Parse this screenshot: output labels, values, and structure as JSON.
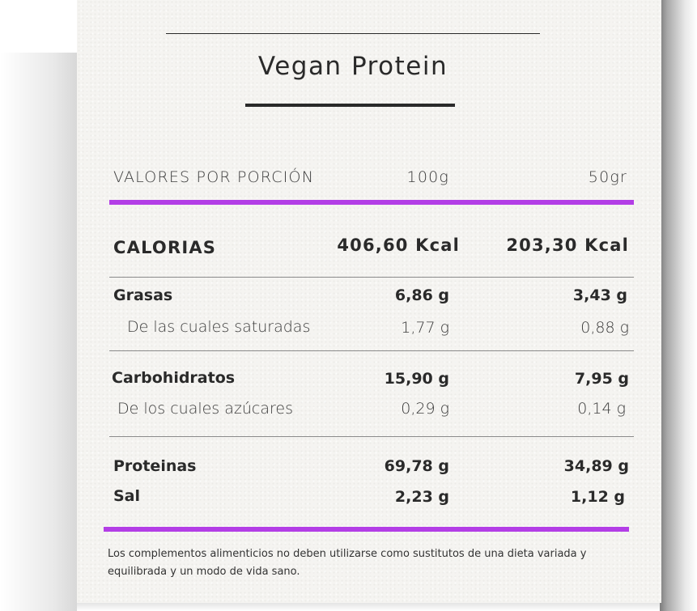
{
  "title": "Vegan Protein",
  "header": {
    "label": "VALORES POR PORCIÓN",
    "col1": "100g",
    "col2": "50gr"
  },
  "calories": {
    "label": "CALORIAS",
    "col1": "406,60 Kcal",
    "col2": "203,30 Kcal"
  },
  "rows": [
    {
      "label": "Grasas",
      "col1": "6,86 g",
      "col2": "3,43 g",
      "style": "bold"
    },
    {
      "label": "De las cuales saturadas",
      "col1": "1,77 g",
      "col2": "0,88 g",
      "style": "sub"
    },
    {
      "label": "Carbohidratos",
      "col1": "15,90 g",
      "col2": "7,95 g",
      "style": "bold"
    },
    {
      "label": "De los cuales azúcares",
      "col1": "0,29 g",
      "col2": "0,14 g",
      "style": "sub"
    },
    {
      "label": "Proteinas",
      "col1": "69,78 g",
      "col2": "34,89 g",
      "style": "bold"
    },
    {
      "label": "Sal",
      "col1": "2,23 g",
      "col2": "1,12 g",
      "style": "bold"
    }
  ],
  "footnote": "Los complementos alimenticios no deben utilizarse como sustitutos de una dieta variada y equilibrada y un modo de vida sano.",
  "colors": {
    "accent": "#b33ee6",
    "text": "#2a2a2a",
    "paper": "#f5f4f1"
  }
}
